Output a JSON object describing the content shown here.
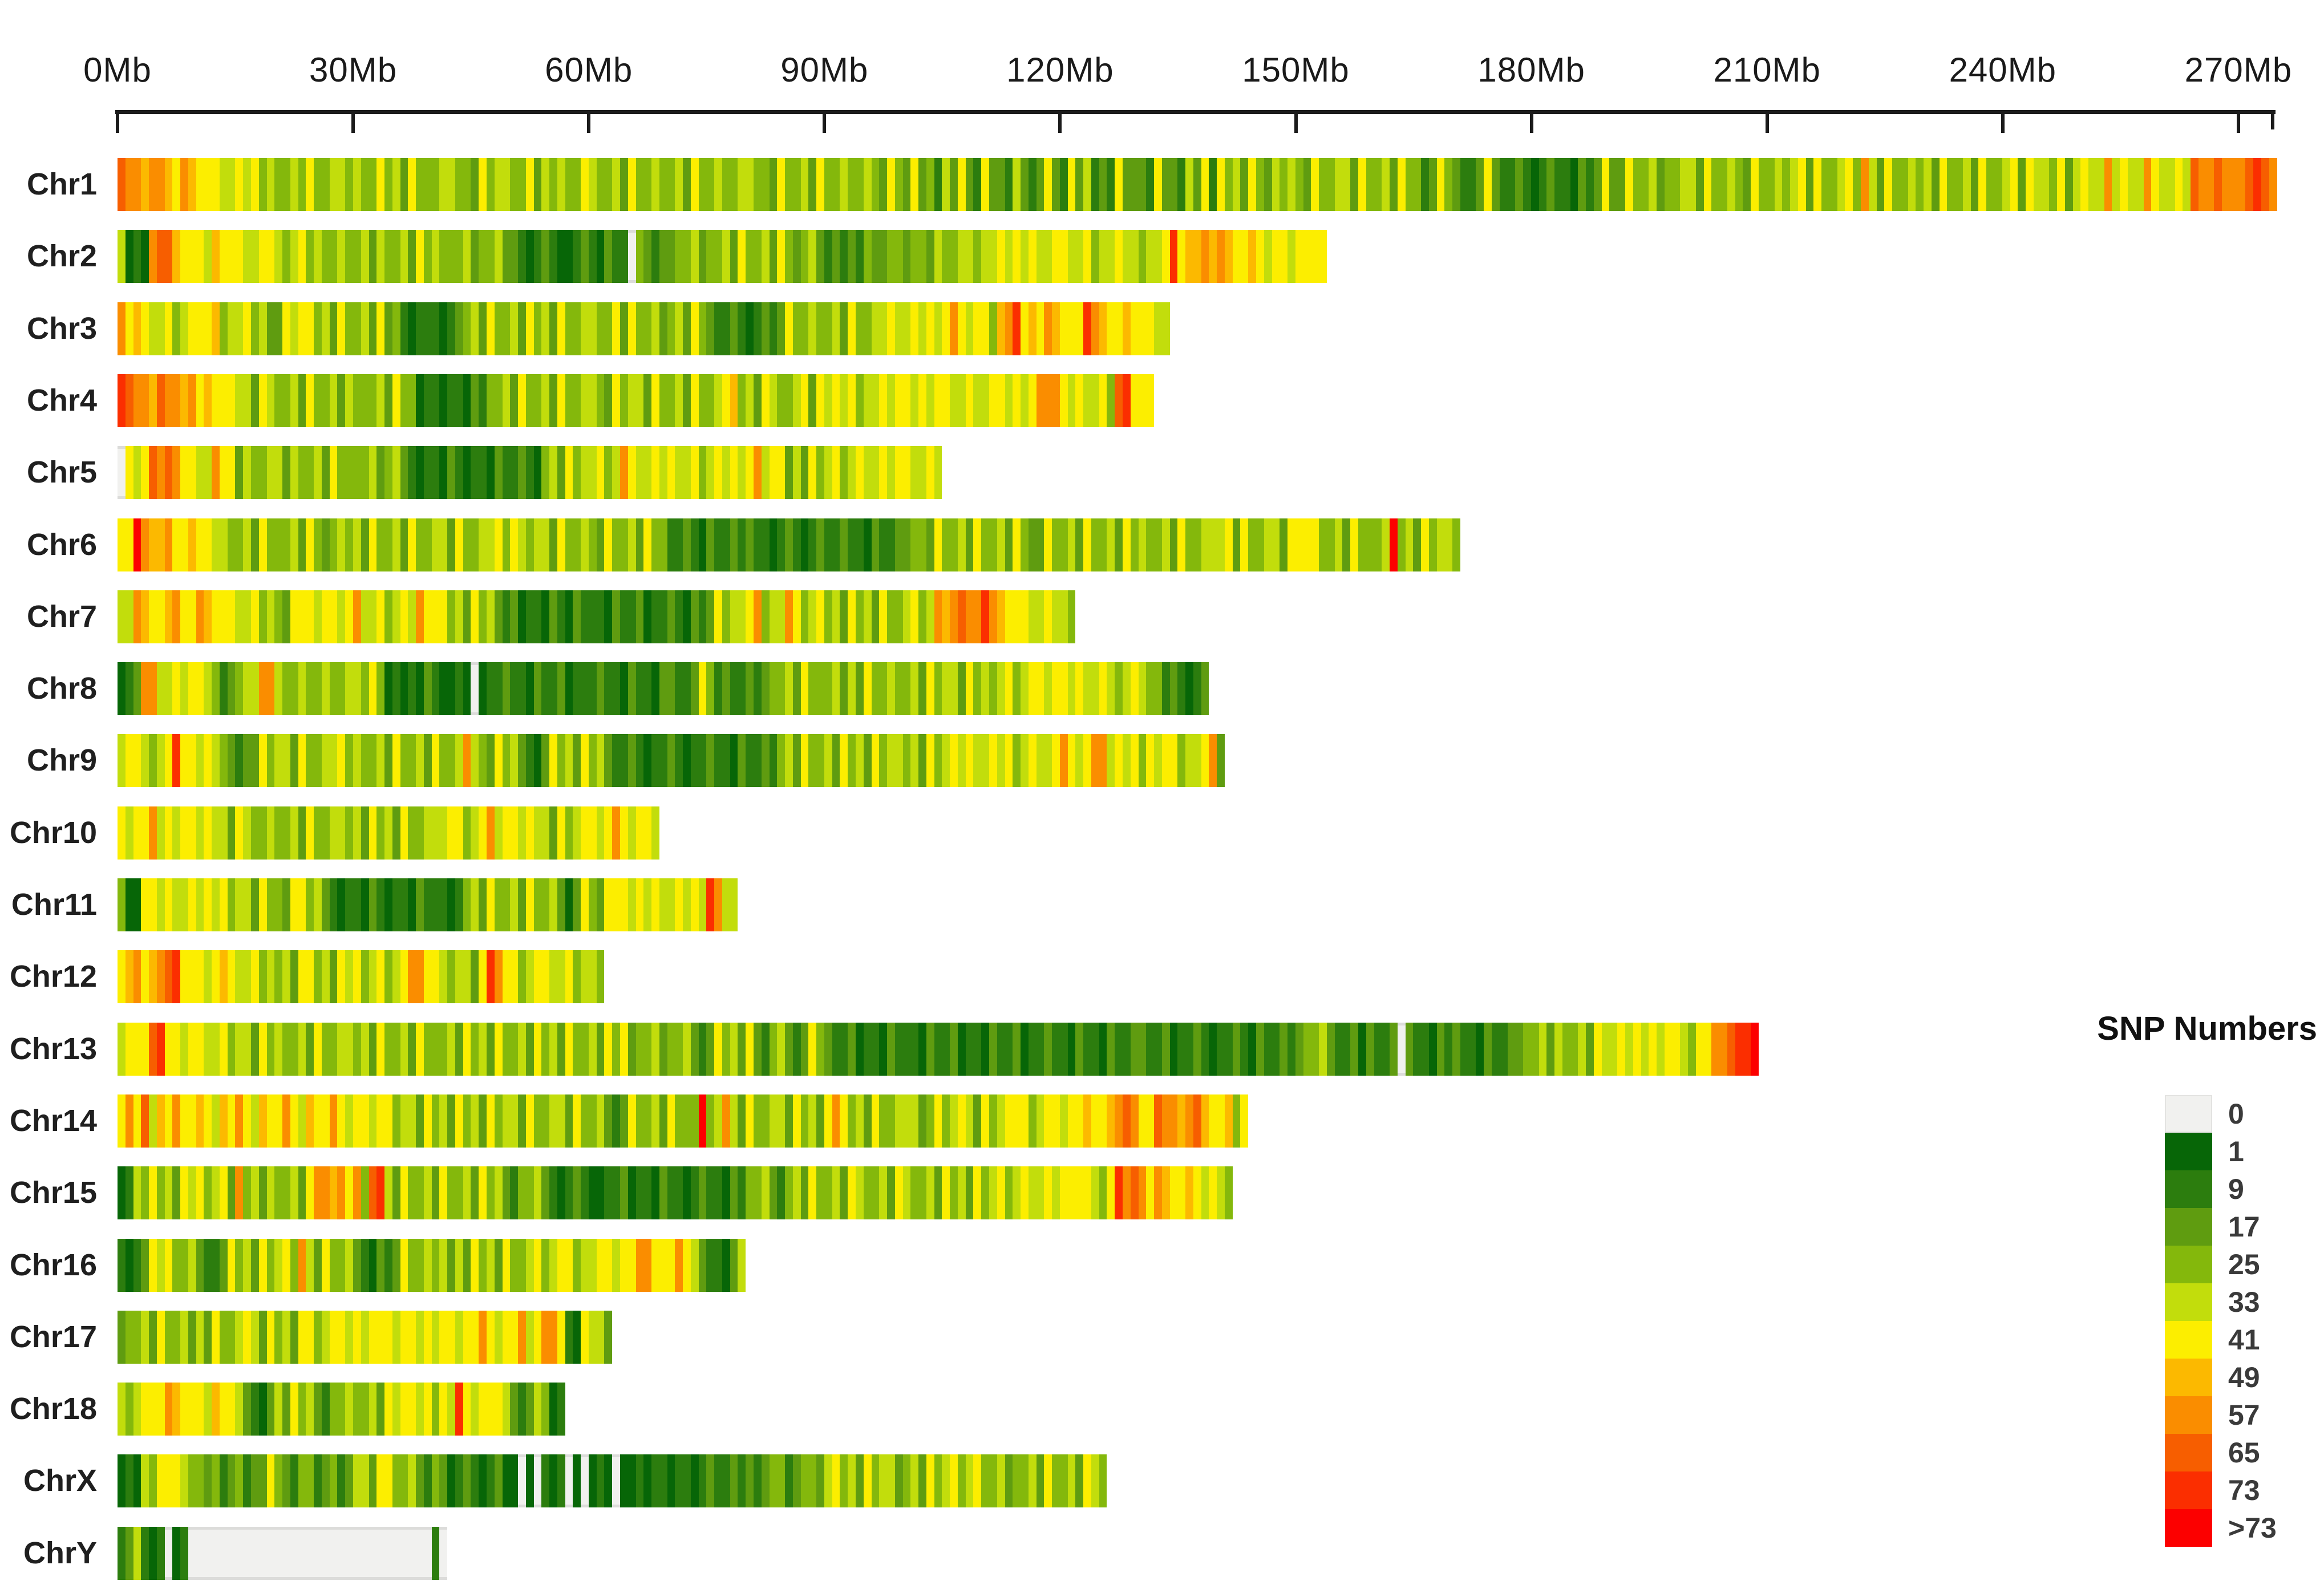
{
  "axis": {
    "unit": "Mb",
    "ticks_mb": [
      0,
      30,
      60,
      90,
      120,
      150,
      180,
      210,
      240,
      270
    ],
    "tick_labels": [
      "0Mb",
      "30Mb",
      "60Mb",
      "90Mb",
      "120Mb",
      "150Mb",
      "180Mb",
      "210Mb",
      "240Mb",
      "270Mb"
    ],
    "axis_end_mb": 274.3,
    "end_tick": true
  },
  "legend": {
    "title": "SNP Numbers",
    "labels": [
      "0",
      "1",
      "9",
      "17",
      "25",
      "33",
      "41",
      "49",
      "57",
      "65",
      "73",
      ">73"
    ]
  },
  "chart_data": {
    "type": "heatmap",
    "title": "",
    "x_axis": {
      "unit": "Mb",
      "tick_interval_mb": 30,
      "max_mb": 274.3
    },
    "bin_size_mb": 1,
    "value_breaks": [
      "0",
      "1",
      "9",
      "17",
      "25",
      "33",
      "41",
      "49",
      "57",
      "65",
      "73",
      ">73"
    ],
    "colors": [
      "#f1f1ef",
      "#076607",
      "#2c7d0e",
      "#5f9c10",
      "#84b80c",
      "#c2dd0c",
      "#fcee00",
      "#fcb900",
      "#fa8d00",
      "#f75e00",
      "#fb2e00",
      "#fc0000"
    ],
    "legend_position": "right",
    "grid": false,
    "chromosomes": [
      {
        "name": "Chr1",
        "length_mb": 274,
        "bands": "98878876876665565645445464455454464536444554436455446354544654453644544536445445544364453644544543643634253632633253236326352326333263325362645364354543644553644536442364322363223212322132363364453445536445436445456364456485364454536445364456365546356558565586556598898889a98"
      },
      {
        "name": "Chr2",
        "length_mb": 152,
        "bands": "51218997666576665566545645445445354453645444534453321232112321322043233445344536445364345323232433443443544554556565655665564556554556a6778787667656656666"
      },
      {
        "name": "Chr3",
        "length_mb": 133,
        "bands": "867655645666745564533656645364453634212221234536445364536445544636445345364322321232364454453644556556565686566 78a67687666a8766766655"
      },
      {
        "name": "Chr4",
        "length_mb": 131,
        "bands": "a98879887867666553654453644535444536441221221324453644536445543645536445364456745365445636565645565665656655655665656888656556 9a666"
      },
      {
        "name": "Chr5",
        "length_mb": 105,
        "bands": "065698986655866354455354453644445345321221321221322321453645564586556565564565656856635364564565565665565"
      },
      {
        "name": "Chr6",
        "length_mb": 171,
        "bands": "66b877866766554453644453643454536445364455364455646545536445436445364422321322323221232123223221322334436445364453643364453644536454453644555636445536666445364445b45364554"
      },
      {
        "name": "Chr7",
        "length_mb": 122,
        "bands": "55876678668766655645436665665685564565866645364532312213213222132231223213236455684558645645364536445645878988a87666556554"
      },
      {
        "name": "Chr8",
        "length_mb": 139,
        "bands": "1238855656654234558854454454455464121213211210122322132231222322132213322364232232344536444535364454453645536454564566566565565456544232123"
      },
      {
        "name": "Chr9",
        "length_mb": 140,
        "bands": "5665456a66565432336455364455645445364453644585436453213645364532232122321223221322324536445364536455453645656556564565568656885656 6566455683"
      },
      {
        "name": "Chr10",
        "length_mb": 69,
        "bands": "656685656656553654454453644554536453644555664568566565536456656865665"
      },
      {
        "name": "Chr11",
        "length_mb": 79,
        "bands": "２11665655656564553644366453212213212213222124536445364453136436665656556565a855"
      },
      {
        "name": "Chr12",
        "length_mb": 62,
        "bands": "6786789a666567655645453664536564564568866545536a86645665564554"
      },
      {
        "name": "Chr13",
        "length_mb": 208,
        "bands": "56669a66566556455364544536445545364453644453645364453645364453646344534453236453632453236432231221322213223122132231223221322132233223122321223213223234453223132230322132322132233445354453655656565665 66889aab"
      },
      {
        "name": "Chr14",
        "length_mb": 142,
        "bands": "68695768667657686576686576686566566455364536453645536445536445323644536 44b4585364455364536864536445553464565364566645665667667898669887897667 6"
      },
      {
        "name": "Chr15",
        "length_mb": 140,
        "bands": "1254645365645638453544536887868 9a5364453644536453244532123211223122132212322132445324536445365445365445364536456456556566665 6a89868766765654"
      },
      {
        "name": "Chr16",
        "length_mb": 80,
        "bands": "21236564453223645364564853644532132364454535364536445645664556656688666865322135"
      },
      {
        "name": "Chr17",
        "length_mb": 63,
        "bands": "344536445353644565364536645665656665665656656686566856886216553"
      },
      {
        "name": "Chr18",
        "length_mb": 56,
        "bands": "5456668766657665321353645324454453656656 65a6566653235412"
      },
      {
        "name": "ChrX",
        "length_mb": 126,
        "bands": "121546665443423423364324423423553664453243123212311010212010121011212212212322323234423443564536455345364564564453445364453654"
      },
      {
        "name": "ChrY",
        "length_mb": 42,
        "bands": "235212012000000000000000000000000000000020"
      }
    ]
  }
}
